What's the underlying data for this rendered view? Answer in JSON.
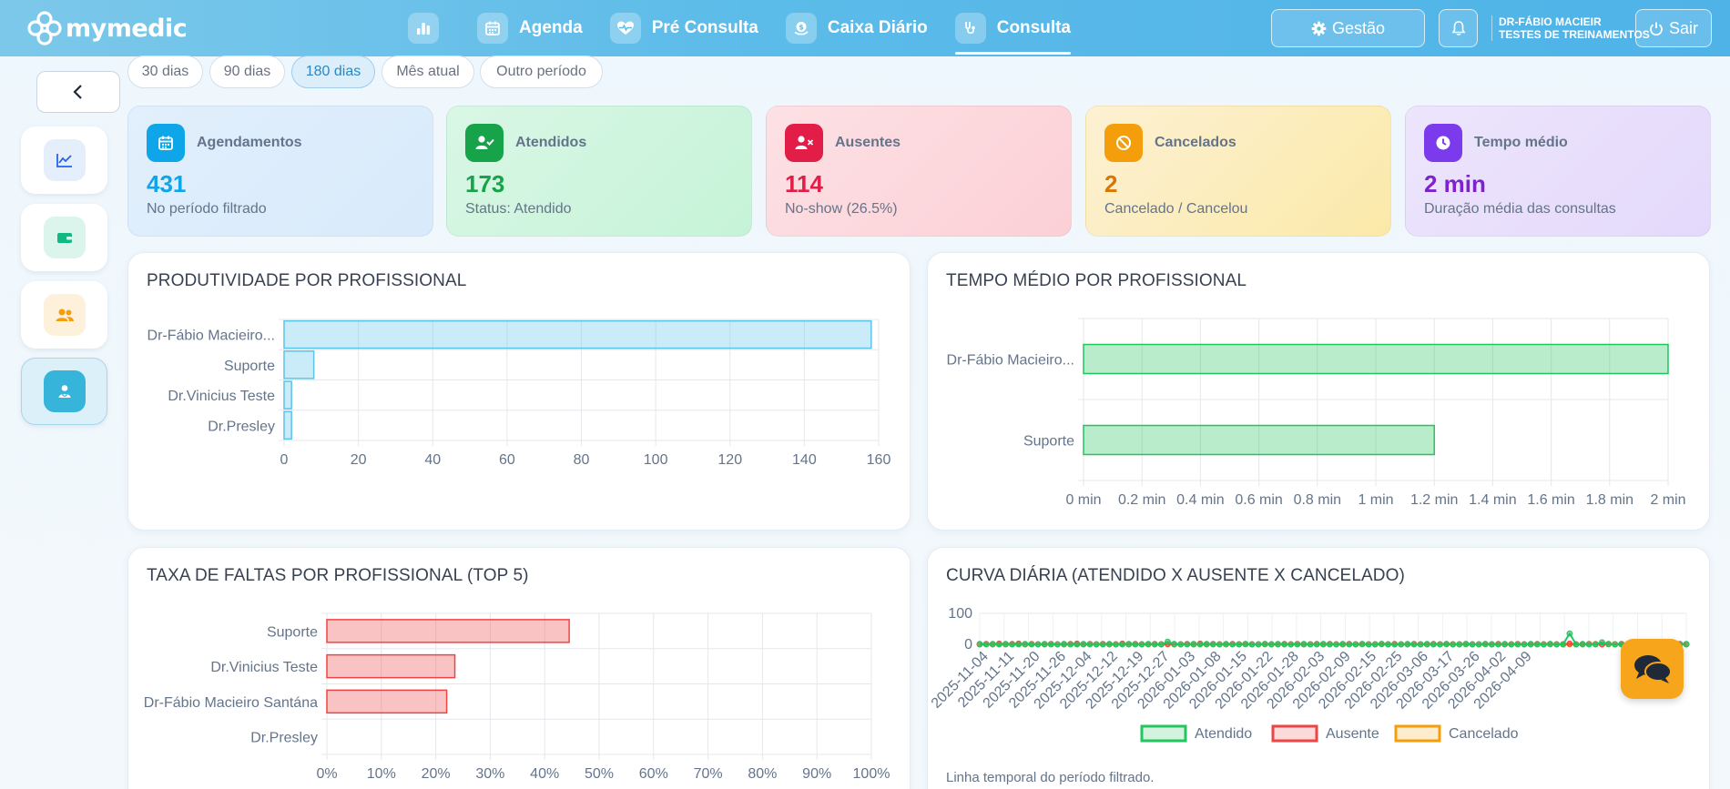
{
  "app": {
    "brand": "mymedic"
  },
  "nav": {
    "items": [
      {
        "label": "",
        "icon": "bar-chart-icon"
      },
      {
        "label": "Agenda",
        "icon": "calendar-icon"
      },
      {
        "label": "Pré Consulta",
        "icon": "heart-pulse-icon"
      },
      {
        "label": "Caixa Diário",
        "icon": "money-icon"
      },
      {
        "label": "Consulta",
        "icon": "stethoscope-icon",
        "active": true
      }
    ],
    "gestao": "Gestão",
    "sair": "Sair",
    "user_name": "DR-FÁBIO MACIEIR",
    "user_org": "TESTES DE TREINAMENTOS"
  },
  "filters": [
    "30 dias",
    "90 dias",
    "180 dias",
    "Mês atual",
    "Outro período"
  ],
  "filters_active": "180 dias",
  "kpis": [
    {
      "label": "Agendamentos",
      "value": "431",
      "sub": "No período filtrado",
      "icon": "calendar-icon",
      "color": "#0ea5e9"
    },
    {
      "label": "Atendidos",
      "value": "173",
      "sub": "Status: Atendido",
      "icon": "user-check-icon",
      "color": "#16a34a"
    },
    {
      "label": "Ausentes",
      "value": "114",
      "sub": "No-show (26.5%)",
      "icon": "user-x-icon",
      "color": "#e11d48"
    },
    {
      "label": "Cancelados",
      "value": "2",
      "sub": "Cancelado / Cancelou",
      "icon": "ban-icon",
      "color": "#d97706"
    },
    {
      "label": "Tempo médio",
      "value": "2 min",
      "sub": "Duração média das consultas",
      "icon": "clock-icon",
      "color": "#7e22ce"
    }
  ],
  "panels": {
    "produtividade": "PRODUTIVIDADE POR PROFISSIONAL",
    "tempo": "TEMPO MÉDIO POR PROFISSIONAL",
    "faltas": "TAXA DE FALTAS POR PROFISSIONAL (TOP 5)",
    "curva": "CURVA DIÁRIA (ATENDIDO X AUSENTE X CANCELADO)",
    "curva_footer": "Linha temporal do período filtrado."
  },
  "chart_data": [
    {
      "type": "bar",
      "orientation": "horizontal",
      "title": "PRODUTIVIDADE POR PROFISSIONAL",
      "categories": [
        "Dr-Fábio Macieiro...",
        "Suporte",
        "Dr.Vinicius Teste",
        "Dr.Presley"
      ],
      "values": [
        158,
        8,
        2,
        2
      ],
      "xlim": [
        0,
        160
      ],
      "xticks": [
        "0",
        "20",
        "40",
        "60",
        "80",
        "100",
        "120",
        "140",
        "160"
      ],
      "color": "#5bc4ea"
    },
    {
      "type": "bar",
      "orientation": "horizontal",
      "title": "TEMPO MÉDIO POR PROFISSIONAL",
      "categories": [
        "Dr-Fábio Macieiro...",
        "Suporte"
      ],
      "values": [
        2,
        1.2
      ],
      "xlim": [
        0,
        2
      ],
      "xticks": [
        "0 min",
        "0.2 min",
        "0.4 min",
        "0.6 min",
        "0.8 min",
        "1 min",
        "1.2 min",
        "1.4 min",
        "1.6 min",
        "1.8 min",
        "2 min"
      ],
      "color": "#22c55e"
    },
    {
      "type": "bar",
      "orientation": "horizontal",
      "title": "TAXA DE FALTAS POR PROFISSIONAL (TOP 5)",
      "categories": [
        "Suporte",
        "Dr.Vinicius Teste",
        "Dr-Fábio Macieiro Santána",
        "Dr.Presley"
      ],
      "values": [
        44.5,
        23.5,
        22,
        0
      ],
      "xlim": [
        0,
        100
      ],
      "xticks": [
        "0%",
        "10%",
        "20%",
        "30%",
        "40%",
        "50%",
        "60%",
        "70%",
        "80%",
        "90%",
        "100%"
      ],
      "color": "#ef4444"
    },
    {
      "type": "line",
      "title": "CURVA DIÁRIA (ATENDIDO X AUSENTE X CANCELADO)",
      "ylim": [
        0,
        100
      ],
      "yticks": [
        "100",
        "0"
      ],
      "xticks": [
        "2025-11-04",
        "2025-11-11",
        "2025-11-20",
        "2025-11-26",
        "2025-12-04",
        "2025-12-12",
        "2025-12-19",
        "2025-12-27",
        "2026-01-03",
        "2026-01-08",
        "2026-01-15",
        "2026-01-22",
        "2026-01-28",
        "2026-02-03",
        "2026-02-09",
        "2026-02-15",
        "2026-02-25",
        "2026-03-06",
        "2026-03-17",
        "2026-03-26",
        "2026-04-02",
        "2026-04-09"
      ],
      "series": [
        {
          "name": "Atendido",
          "color": "#22c55e",
          "values": [
            1,
            0,
            1,
            0,
            1,
            0,
            0,
            1,
            0,
            0,
            1,
            0,
            0,
            1,
            0,
            0,
            1,
            0,
            0,
            0,
            1,
            0,
            0,
            1,
            0,
            0,
            1,
            0,
            0,
            8,
            1,
            0,
            0,
            1,
            0,
            1,
            0,
            0,
            1,
            0,
            0,
            1,
            0,
            0,
            1,
            0,
            1,
            0,
            0,
            0,
            1,
            0,
            0,
            1,
            0,
            0,
            1,
            0,
            0,
            1,
            0,
            0,
            1,
            0,
            0,
            0,
            1,
            0,
            0,
            1,
            0,
            0,
            1,
            0,
            0,
            1,
            0,
            0,
            1,
            0,
            0,
            1,
            0,
            0,
            0,
            1,
            0,
            0,
            1,
            0,
            0,
            35,
            0,
            1,
            0,
            0,
            6,
            1,
            0,
            0,
            1,
            0,
            0,
            1,
            0,
            0,
            1,
            0,
            0,
            1
          ]
        },
        {
          "name": "Ausente",
          "color": "#ef4444",
          "values": [
            0,
            1,
            0,
            2,
            0,
            1,
            2,
            0,
            1,
            0,
            0,
            1,
            0,
            0,
            1,
            2,
            0,
            1,
            0,
            1,
            0,
            0,
            2,
            0,
            1,
            0,
            0,
            1,
            0,
            1,
            0,
            0,
            1,
            0,
            2,
            0,
            1,
            0,
            0,
            1,
            0,
            1,
            0,
            0,
            1,
            0,
            0,
            1,
            0,
            1,
            0,
            0,
            1,
            0,
            1,
            0,
            0,
            1,
            0,
            1,
            0,
            0,
            1,
            0,
            1,
            0,
            0,
            1,
            0,
            0,
            1,
            0,
            1,
            0,
            0,
            1,
            0,
            0,
            1,
            0,
            1,
            0,
            0,
            1,
            0,
            0,
            1,
            0,
            1,
            0,
            0,
            2,
            0,
            0,
            1,
            0,
            0,
            1,
            0,
            1,
            0,
            0,
            1,
            0,
            0,
            1,
            0,
            0,
            1,
            0
          ]
        },
        {
          "name": "Cancelado",
          "color": "#f59e0b",
          "values": [
            0,
            0,
            0,
            0,
            0,
            0,
            0,
            0,
            0,
            0,
            0,
            0,
            0,
            0,
            0,
            0,
            0,
            0,
            0,
            0,
            0,
            0,
            0,
            0,
            0,
            0,
            0,
            0,
            0,
            0,
            0,
            0,
            0,
            0,
            0,
            0,
            0,
            0,
            0,
            0,
            0,
            0,
            0,
            0,
            0,
            0,
            0,
            0,
            0,
            0,
            0,
            0,
            0,
            0,
            0,
            0,
            0,
            0,
            0,
            0,
            0,
            0,
            1,
            0,
            0,
            0,
            0,
            0,
            0,
            0,
            0,
            0,
            0,
            0,
            0,
            0,
            0,
            0,
            0,
            0,
            0,
            0,
            0,
            0,
            0,
            0,
            0,
            0,
            0,
            0,
            0,
            0,
            0,
            0,
            0,
            1,
            0,
            0,
            0,
            0,
            0,
            0,
            0,
            0,
            0,
            0,
            0,
            0,
            0,
            0
          ]
        }
      ],
      "legend": "bottom"
    }
  ]
}
